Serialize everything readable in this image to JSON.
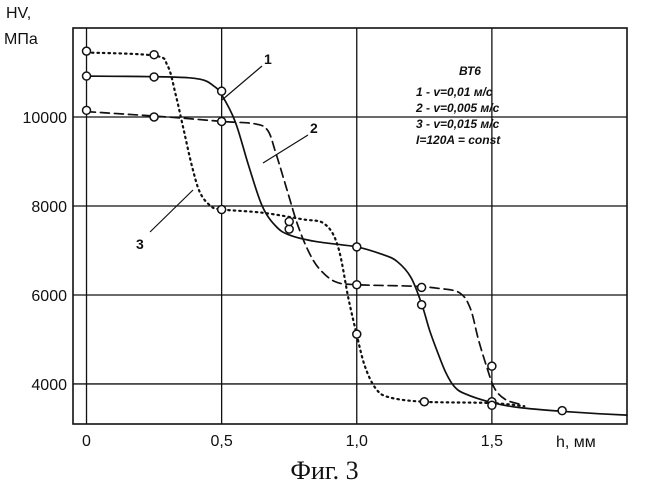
{
  "caption": "Фиг. 3",
  "chart_data": {
    "type": "line",
    "ylabel_line1": "HV,",
    "ylabel_line2": "МПа",
    "xlabel": "h, мм",
    "xlim": [
      -0.05,
      2.0
    ],
    "ylim": [
      3100,
      12000
    ],
    "x_ticks": [
      {
        "value": 0,
        "label": "0"
      },
      {
        "value": 0.5,
        "label": "0,5"
      },
      {
        "value": 1.0,
        "label": "1,0"
      },
      {
        "value": 1.5,
        "label": "1,5"
      }
    ],
    "y_ticks": [
      {
        "value": 4000,
        "label": "4000"
      },
      {
        "value": 6000,
        "label": "6000"
      },
      {
        "value": 8000,
        "label": "8000"
      },
      {
        "value": 10000,
        "label": "10000"
      }
    ],
    "grid": true,
    "legend": {
      "position": "top-right",
      "lines": [
        "ВТ6",
        "1 -   v=0,01 м/с",
        "2 - v=0,005 м/с",
        "3 - v=0,015 м/с",
        "I=120A = const"
      ]
    },
    "series": [
      {
        "name": "1",
        "style": "solid",
        "label": "1",
        "curve": [
          [
            0,
            10920
          ],
          [
            0.3,
            10900
          ],
          [
            0.42,
            10850
          ],
          [
            0.47,
            10700
          ],
          [
            0.5,
            10500
          ],
          [
            0.55,
            9900
          ],
          [
            0.6,
            8900
          ],
          [
            0.65,
            8000
          ],
          [
            0.7,
            7550
          ],
          [
            0.75,
            7350
          ],
          [
            0.85,
            7200
          ],
          [
            1.0,
            7080
          ],
          [
            1.1,
            6900
          ],
          [
            1.15,
            6750
          ],
          [
            1.2,
            6400
          ],
          [
            1.24,
            5800
          ],
          [
            1.27,
            5200
          ],
          [
            1.3,
            4700
          ],
          [
            1.33,
            4250
          ],
          [
            1.36,
            3950
          ],
          [
            1.4,
            3780
          ],
          [
            1.5,
            3580
          ],
          [
            1.6,
            3470
          ],
          [
            1.75,
            3390
          ],
          [
            1.9,
            3330
          ],
          [
            2.0,
            3300
          ]
        ],
        "markers": [
          [
            0,
            10920
          ],
          [
            0.25,
            10900
          ],
          [
            0.5,
            10580
          ],
          [
            0.75,
            7480
          ],
          [
            1.0,
            7080
          ],
          [
            1.24,
            5780
          ],
          [
            1.5,
            3600
          ],
          [
            1.76,
            3400
          ]
        ]
      },
      {
        "name": "2",
        "style": "dashed",
        "label": "2",
        "curve": [
          [
            0,
            10120
          ],
          [
            0.3,
            10000
          ],
          [
            0.5,
            9900
          ],
          [
            0.62,
            9850
          ],
          [
            0.67,
            9700
          ],
          [
            0.7,
            9200
          ],
          [
            0.74,
            8400
          ],
          [
            0.78,
            7600
          ],
          [
            0.82,
            7000
          ],
          [
            0.86,
            6600
          ],
          [
            0.92,
            6300
          ],
          [
            1.0,
            6230
          ],
          [
            1.2,
            6200
          ],
          [
            1.3,
            6150
          ],
          [
            1.38,
            6050
          ],
          [
            1.42,
            5700
          ],
          [
            1.45,
            5000
          ],
          [
            1.48,
            4400
          ],
          [
            1.51,
            3900
          ],
          [
            1.55,
            3650
          ],
          [
            1.6,
            3550
          ]
        ],
        "markers": [
          [
            0,
            10150
          ],
          [
            0.25,
            10000
          ],
          [
            0.5,
            9900
          ],
          [
            1.0,
            6230
          ],
          [
            1.24,
            6170
          ],
          [
            1.5,
            4400
          ]
        ]
      },
      {
        "name": "3",
        "style": "dotted",
        "label": "3",
        "curve": [
          [
            0,
            11450
          ],
          [
            0.25,
            11380
          ],
          [
            0.3,
            11150
          ],
          [
            0.33,
            10500
          ],
          [
            0.36,
            9700
          ],
          [
            0.39,
            8900
          ],
          [
            0.42,
            8300
          ],
          [
            0.46,
            8000
          ],
          [
            0.5,
            7920
          ],
          [
            0.65,
            7850
          ],
          [
            0.8,
            7700
          ],
          [
            0.88,
            7600
          ],
          [
            0.93,
            7100
          ],
          [
            0.97,
            5900
          ],
          [
            1.0,
            5100
          ],
          [
            1.03,
            4400
          ],
          [
            1.07,
            3900
          ],
          [
            1.12,
            3700
          ],
          [
            1.25,
            3600
          ],
          [
            1.5,
            3570
          ],
          [
            1.62,
            3500
          ]
        ],
        "markers": [
          [
            0,
            11480
          ],
          [
            0.25,
            11400
          ],
          [
            0.5,
            7920
          ],
          [
            0.75,
            7650
          ],
          [
            1.0,
            5120
          ],
          [
            1.25,
            3600
          ],
          [
            1.5,
            3520
          ]
        ]
      }
    ]
  }
}
